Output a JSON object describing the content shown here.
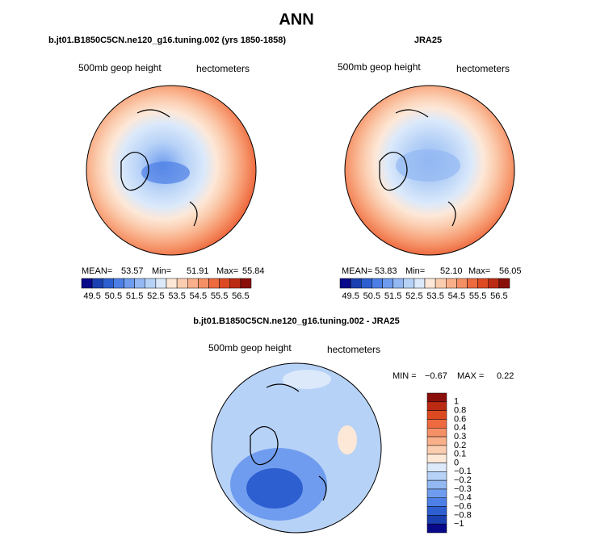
{
  "title": "ANN",
  "panels": [
    {
      "title": "b.jt01.B1850C5CN.ne120_g16.tuning.002 (yrs 1850-1858)",
      "field": "500mb geop height",
      "units": "hectometers",
      "stats": [
        {
          "label": "MEAN=",
          "value": "53.57"
        },
        {
          "label": "Min=",
          "value": "51.91"
        },
        {
          "label": "Max=",
          "value": "55.84"
        }
      ]
    },
    {
      "title": "JRA25",
      "field": "500mb geop height",
      "units": "hectometers",
      "stats": [
        {
          "label": "MEAN=",
          "value": "53.83"
        },
        {
          "label": "Min=",
          "value": "52.10"
        },
        {
          "label": "Max=",
          "value": "56.05"
        }
      ]
    },
    {
      "title": "b.jt01.B1850C5CN.ne120_g16.tuning.002 - JRA25",
      "field": "500mb geop height",
      "units": "hectometers",
      "stats": [
        {
          "label": "MIN =",
          "value": "−0.67"
        },
        {
          "label": "MAX =",
          "value": "0.22"
        }
      ]
    }
  ],
  "colorbar": {
    "labels": [
      "49.5",
      "50.5",
      "51.5",
      "52.5",
      "53.5",
      "54.5",
      "55.5",
      "56.5"
    ],
    "colors": [
      "#08088a",
      "#1a3fb0",
      "#2e5fd0",
      "#4d7fe6",
      "#6f9cee",
      "#93b8f2",
      "#b7d2f7",
      "#dbe9fb",
      "#fde8d8",
      "#fbcdb0",
      "#f9b08a",
      "#f59066",
      "#ee6b40",
      "#dd4a22",
      "#bb2a12",
      "#8a0f0a"
    ]
  },
  "diff_colorbar": {
    "labels": [
      "1",
      "0.8",
      "0.6",
      "0.4",
      "0.3",
      "0.2",
      "0.1",
      "0",
      "−0.1",
      "−0.2",
      "−0.3",
      "−0.4",
      "−0.6",
      "−0.8",
      "−1"
    ],
    "colors": [
      "#8a0f0a",
      "#bb2a12",
      "#dd4a22",
      "#ee6b40",
      "#f59066",
      "#f9b08a",
      "#fbcdb0",
      "#fde8d8",
      "#dbe9fb",
      "#b7d2f7",
      "#93b8f2",
      "#6f9cee",
      "#4d7fe6",
      "#2e5fd0",
      "#1a3fb0",
      "#08088a"
    ]
  }
}
